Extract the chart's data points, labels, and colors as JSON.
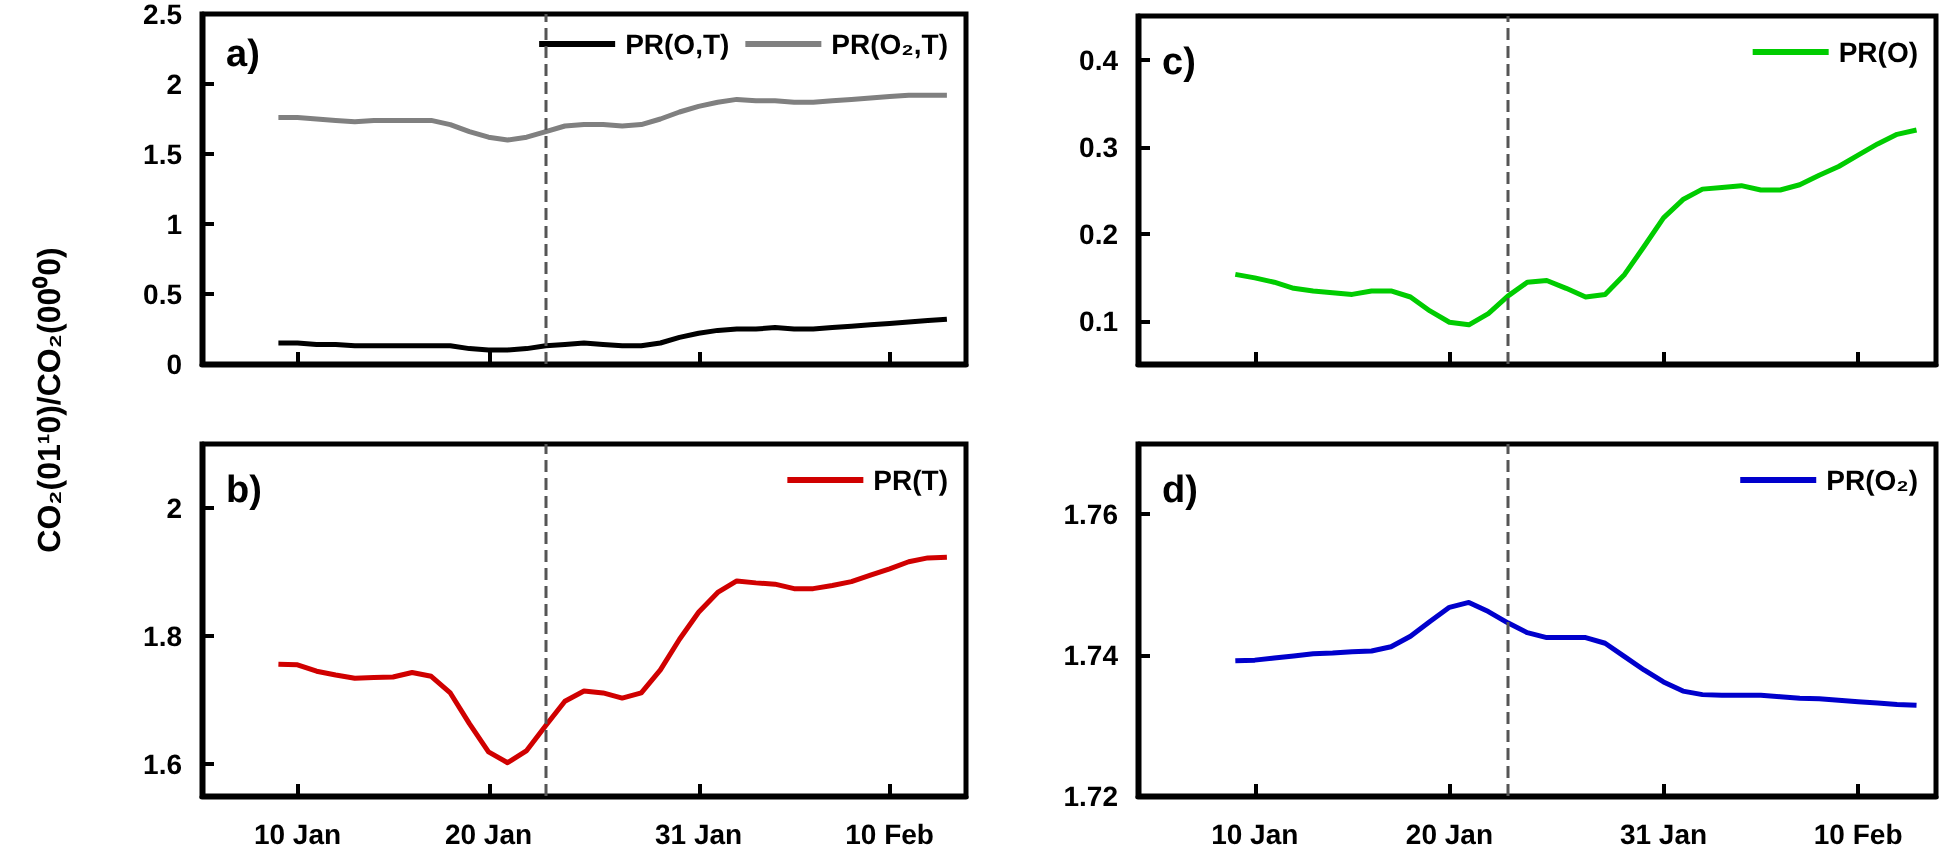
{
  "chart_data": [
    {
      "type": "line",
      "ylabel": "CO₂(01¹0)/CO₂(00⁰0)",
      "annotations": [
        "a)"
      ],
      "legend": "top right",
      "marker": "none",
      "tick_labels": "y",
      "x": [
        "--01-09",
        "--01-10",
        "--01-11",
        "--01-12",
        "--01-13",
        "--01-14",
        "--01-15",
        "--01-16",
        "--01-17",
        "--01-18",
        "--01-19",
        "--01-20",
        "--01-21",
        "--01-22",
        "--01-23",
        "--01-24",
        "--01-25",
        "--01-26",
        "--01-27",
        "--01-28",
        "--01-29",
        "--01-30",
        "--01-31",
        "--02-01",
        "--02-02",
        "--02-03",
        "--02-04",
        "--02-05",
        "--02-06",
        "--02-07",
        "--02-08",
        "--02-09",
        "--02-10",
        "--02-11",
        "--02-12",
        "--02-13"
      ],
      "xlim": [
        "--01-05",
        "--02-14"
      ],
      "xticks": [
        {
          "value": "--01-10",
          "label": "10 Jan"
        },
        {
          "value": "--01-20",
          "label": "20 Jan"
        },
        {
          "value": "--01-31",
          "label": "31 Jan"
        },
        {
          "value": "--02-10",
          "label": "10 Feb"
        }
      ],
      "ylim": [
        0,
        2.5
      ],
      "yticks": [
        0,
        0.5,
        1,
        1.5,
        2,
        2.5
      ],
      "ref_lines": [
        {
          "axis": "x",
          "value": "--01-23",
          "color": "#555555",
          "line_style": "dashed"
        }
      ],
      "series": [
        {
          "name": "PR(O,T)",
          "color": "#000000",
          "values": [
            0.15,
            0.15,
            0.14,
            0.14,
            0.13,
            0.13,
            0.13,
            0.13,
            0.13,
            0.13,
            0.11,
            0.1,
            0.1,
            0.11,
            0.13,
            0.14,
            0.15,
            0.14,
            0.13,
            0.13,
            0.15,
            0.19,
            0.22,
            0.24,
            0.25,
            0.25,
            0.26,
            0.25,
            0.25,
            0.26,
            0.27,
            0.28,
            0.29,
            0.3,
            0.31,
            0.32
          ]
        },
        {
          "name": "PR(O₂,T)",
          "color": "#808080",
          "values": [
            1.76,
            1.76,
            1.75,
            1.74,
            1.73,
            1.74,
            1.74,
            1.74,
            1.74,
            1.71,
            1.66,
            1.62,
            1.6,
            1.62,
            1.66,
            1.7,
            1.71,
            1.71,
            1.7,
            1.71,
            1.75,
            1.8,
            1.84,
            1.87,
            1.89,
            1.88,
            1.88,
            1.87,
            1.87,
            1.88,
            1.89,
            1.9,
            1.91,
            1.92,
            1.92,
            1.92
          ]
        }
      ]
    },
    {
      "type": "line",
      "annotations": [
        "c)"
      ],
      "legend": "top right",
      "marker": "none",
      "tick_labels": "y",
      "x": [
        "--01-09",
        "--01-10",
        "--01-11",
        "--01-12",
        "--01-13",
        "--01-14",
        "--01-15",
        "--01-16",
        "--01-17",
        "--01-18",
        "--01-19",
        "--01-20",
        "--01-21",
        "--01-22",
        "--01-23",
        "--01-24",
        "--01-25",
        "--01-26",
        "--01-27",
        "--01-28",
        "--01-29",
        "--01-30",
        "--01-31",
        "--02-01",
        "--02-02",
        "--02-03",
        "--02-04",
        "--02-05",
        "--02-06",
        "--02-07",
        "--02-08",
        "--02-09",
        "--02-10",
        "--02-11",
        "--02-12",
        "--02-13"
      ],
      "xlim": [
        "--01-04",
        "--02-14"
      ],
      "xticks": [
        {
          "value": "--01-10",
          "label": "10 Jan"
        },
        {
          "value": "--01-20",
          "label": "20 Jan"
        },
        {
          "value": "--01-31",
          "label": "31 Jan"
        },
        {
          "value": "--02-10",
          "label": "10 Feb"
        }
      ],
      "ylim": [
        0.05,
        0.45
      ],
      "yticks": [
        0.1,
        0.2,
        0.3,
        0.4
      ],
      "ref_lines": [
        {
          "axis": "x",
          "value": "--01-23",
          "color": "#555555",
          "line_style": "dashed"
        }
      ],
      "series": [
        {
          "name": "PR(O)",
          "color": "#00cc00",
          "values": [
            0.153,
            0.149,
            0.144,
            0.137,
            0.134,
            0.132,
            0.13,
            0.134,
            0.134,
            0.127,
            0.111,
            0.098,
            0.095,
            0.108,
            0.128,
            0.144,
            0.146,
            0.137,
            0.127,
            0.13,
            0.153,
            0.185,
            0.218,
            0.239,
            0.251,
            0.253,
            0.255,
            0.25,
            0.25,
            0.256,
            0.267,
            0.277,
            0.29,
            0.303,
            0.314,
            0.319
          ]
        }
      ]
    },
    {
      "type": "line",
      "annotations": [
        "b)"
      ],
      "legend": "top right",
      "marker": "none",
      "x": [
        "--01-09",
        "--01-10",
        "--01-11",
        "--01-12",
        "--01-13",
        "--01-14",
        "--01-15",
        "--01-16",
        "--01-17",
        "--01-18",
        "--01-19",
        "--01-20",
        "--01-21",
        "--01-22",
        "--01-23",
        "--01-24",
        "--01-25",
        "--01-26",
        "--01-27",
        "--01-28",
        "--01-29",
        "--01-30",
        "--01-31",
        "--02-01",
        "--02-02",
        "--02-03",
        "--02-04",
        "--02-05",
        "--02-06",
        "--02-07",
        "--02-08",
        "--02-09",
        "--02-10",
        "--02-11",
        "--02-12",
        "--02-13"
      ],
      "xlim": [
        "--01-05",
        "--02-14"
      ],
      "xticks": [
        {
          "value": "--01-10",
          "label": "10 Jan"
        },
        {
          "value": "--01-20",
          "label": "20 Jan"
        },
        {
          "value": "--01-31",
          "label": "31 Jan"
        },
        {
          "value": "--02-10",
          "label": "10 Feb"
        }
      ],
      "ylim": [
        1.55,
        2.1
      ],
      "yticks": [
        1.6,
        1.8,
        2
      ],
      "ref_lines": [
        {
          "axis": "x",
          "value": "--01-23",
          "color": "#555555",
          "line_style": "dashed"
        }
      ],
      "series": [
        {
          "name": "PR(T)",
          "color": "#d00000",
          "values": [
            1.756,
            1.755,
            1.745,
            1.739,
            1.734,
            1.735,
            1.736,
            1.743,
            1.737,
            1.711,
            1.663,
            1.619,
            1.602,
            1.621,
            1.66,
            1.698,
            1.714,
            1.711,
            1.703,
            1.711,
            1.747,
            1.795,
            1.837,
            1.868,
            1.886,
            1.883,
            1.881,
            1.874,
            1.874,
            1.879,
            1.885,
            1.895,
            1.905,
            1.916,
            1.922,
            1.923
          ]
        }
      ]
    },
    {
      "type": "line",
      "annotations": [
        "d)"
      ],
      "legend": "top right",
      "marker": "none",
      "x": [
        "--01-09",
        "--01-10",
        "--01-11",
        "--01-12",
        "--01-13",
        "--01-14",
        "--01-15",
        "--01-16",
        "--01-17",
        "--01-18",
        "--01-19",
        "--01-20",
        "--01-21",
        "--01-22",
        "--01-23",
        "--01-24",
        "--01-25",
        "--01-26",
        "--01-27",
        "--01-28",
        "--01-29",
        "--01-30",
        "--01-31",
        "--02-01",
        "--02-02",
        "--02-03",
        "--02-04",
        "--02-05",
        "--02-06",
        "--02-07",
        "--02-08",
        "--02-09",
        "--02-10",
        "--02-11",
        "--02-12",
        "--02-13"
      ],
      "xlim": [
        "--01-04",
        "--02-14"
      ],
      "xticks": [
        {
          "value": "--01-10",
          "label": "10 Jan"
        },
        {
          "value": "--01-20",
          "label": "20 Jan"
        },
        {
          "value": "--01-31",
          "label": "31 Jan"
        },
        {
          "value": "--02-10",
          "label": "10 Feb"
        }
      ],
      "ylim": [
        1.72,
        1.77
      ],
      "yticks": [
        1.72,
        1.74,
        1.76
      ],
      "ref_lines": [
        {
          "axis": "x",
          "value": "--01-23",
          "color": "#555555",
          "line_style": "dashed"
        }
      ],
      "series": [
        {
          "name": "PR(O₂)",
          "color": "#0000cc",
          "values": [
            1.7392,
            1.7393,
            1.7396,
            1.7399,
            1.7402,
            1.7403,
            1.7405,
            1.7406,
            1.7412,
            1.7427,
            1.7448,
            1.7468,
            1.7475,
            1.7462,
            1.7446,
            1.7432,
            1.7425,
            1.7425,
            1.7425,
            1.7417,
            1.7398,
            1.7379,
            1.7362,
            1.7349,
            1.7344,
            1.7343,
            1.7343,
            1.7343,
            1.7341,
            1.7339,
            1.7338,
            1.7336,
            1.7334,
            1.7332,
            1.733,
            1.7329
          ]
        }
      ]
    }
  ]
}
